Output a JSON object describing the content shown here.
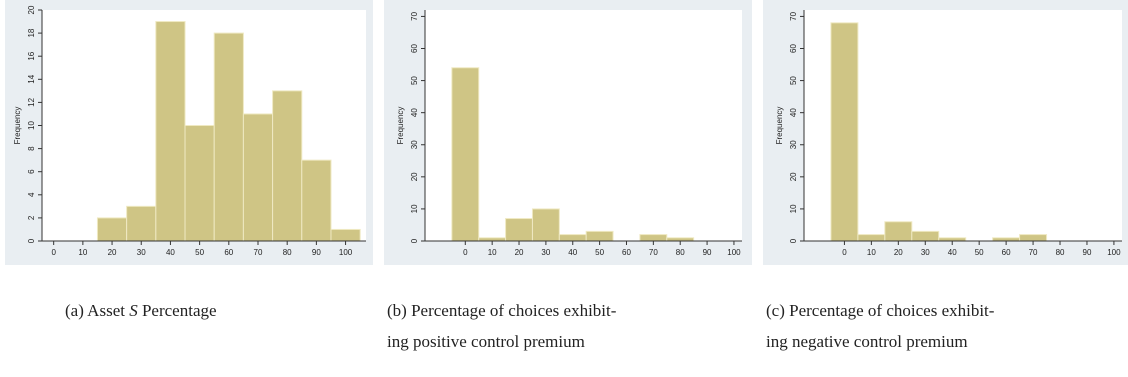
{
  "style": {
    "outer_bg": "#e9eef2",
    "plot_bg": "#ffffff",
    "bar_fill": "#cfc585",
    "bar_stroke": "#efe9c2",
    "axis_color": "#333333"
  },
  "chart_data": [
    {
      "type": "bar",
      "subtype": "histogram",
      "ylabel": "Frequency",
      "xlim": [
        -4,
        107
      ],
      "ylim": [
        0,
        20
      ],
      "xticks": [
        0,
        10,
        20,
        30,
        40,
        50,
        60,
        70,
        80,
        90,
        100
      ],
      "yticks": [
        0,
        2,
        4,
        6,
        8,
        10,
        12,
        14,
        16,
        18,
        20
      ],
      "bin_edges": [
        15,
        25,
        35,
        45,
        55,
        65,
        75,
        85,
        95,
        105
      ],
      "values": [
        2,
        3,
        19,
        10,
        18,
        11,
        13,
        7,
        1
      ],
      "grid": false,
      "caption": {
        "prefix": "(a) Asset ",
        "italic": "S",
        "suffix": " Percentage",
        "lines": [
          "(a) Asset S Percentage"
        ]
      }
    },
    {
      "type": "bar",
      "subtype": "histogram",
      "ylabel": "Frequency",
      "xlim": [
        -15,
        103
      ],
      "ylim": [
        0,
        72
      ],
      "xticks": [
        0,
        10,
        20,
        30,
        40,
        50,
        60,
        70,
        80,
        90,
        100
      ],
      "yticks": [
        0,
        10,
        20,
        30,
        40,
        50,
        60,
        70
      ],
      "bin_edges": [
        -5,
        5,
        15,
        25,
        35,
        45,
        55,
        65,
        75,
        85
      ],
      "values": [
        54,
        1,
        7,
        10,
        2,
        3,
        0,
        2,
        1
      ],
      "grid": false,
      "caption": {
        "lines": [
          "(b) Percentage of choices exhibit-",
          "ing positive control premium"
        ]
      }
    },
    {
      "type": "bar",
      "subtype": "histogram",
      "ylabel": "Frequency",
      "xlim": [
        -15,
        103
      ],
      "ylim": [
        0,
        72
      ],
      "xticks": [
        0,
        10,
        20,
        30,
        40,
        50,
        60,
        70,
        80,
        90,
        100
      ],
      "yticks": [
        0,
        10,
        20,
        30,
        40,
        50,
        60,
        70
      ],
      "bin_edges": [
        -5,
        5,
        15,
        25,
        35,
        45,
        55,
        65,
        75
      ],
      "values": [
        68,
        2,
        6,
        3,
        1,
        0,
        1,
        2
      ],
      "grid": false,
      "caption": {
        "lines": [
          "(c) Percentage of choices exhibit-",
          "ing negative control premium"
        ]
      }
    }
  ]
}
